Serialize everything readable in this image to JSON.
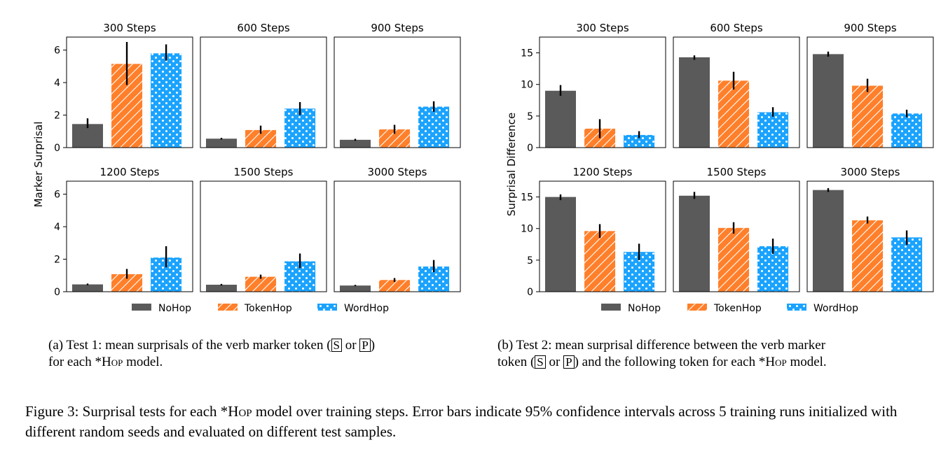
{
  "chart_data": [
    {
      "type": "bar",
      "ylabel": "Marker Surprisal",
      "ylim": [
        0,
        6.8
      ],
      "yticks": [
        0,
        2,
        4,
        6
      ],
      "categories": [
        "NoHop",
        "TokenHop",
        "WordHop"
      ],
      "legend": {
        "position": "bottom",
        "entries": [
          "NoHop",
          "TokenHop",
          "WordHop"
        ]
      },
      "panels": [
        {
          "title": "300 Steps",
          "values": [
            1.45,
            5.15,
            5.8
          ],
          "errors": [
            [
              1.2,
              1.8
            ],
            [
              3.85,
              6.5
            ],
            [
              5.35,
              6.35
            ]
          ]
        },
        {
          "title": "600 Steps",
          "values": [
            0.55,
            1.08,
            2.4
          ],
          "errors": [
            [
              0.5,
              0.6
            ],
            [
              0.85,
              1.35
            ],
            [
              2.0,
              2.8
            ]
          ]
        },
        {
          "title": "900 Steps",
          "values": [
            0.48,
            1.12,
            2.52
          ],
          "errors": [
            [
              0.42,
              0.54
            ],
            [
              0.85,
              1.4
            ],
            [
              2.2,
              2.85
            ]
          ]
        },
        {
          "title": "1200 Steps",
          "values": [
            0.45,
            1.08,
            2.1
          ],
          "errors": [
            [
              0.4,
              0.5
            ],
            [
              0.8,
              1.4
            ],
            [
              1.5,
              2.8
            ]
          ]
        },
        {
          "title": "1500 Steps",
          "values": [
            0.43,
            0.92,
            1.87
          ],
          "errors": [
            [
              0.38,
              0.48
            ],
            [
              0.8,
              1.05
            ],
            [
              1.45,
              2.35
            ]
          ]
        },
        {
          "title": "3000 Steps",
          "values": [
            0.38,
            0.72,
            1.55
          ],
          "errors": [
            [
              0.34,
              0.42
            ],
            [
              0.6,
              0.84
            ],
            [
              1.2,
              1.95
            ]
          ]
        }
      ]
    },
    {
      "type": "bar",
      "ylabel": "Surprisal Difference",
      "ylim": [
        0,
        17.5
      ],
      "yticks": [
        0,
        5,
        10,
        15
      ],
      "categories": [
        "NoHop",
        "TokenHop",
        "WordHop"
      ],
      "legend": {
        "position": "bottom",
        "entries": [
          "NoHop",
          "TokenHop",
          "WordHop"
        ]
      },
      "panels": [
        {
          "title": "300 Steps",
          "values": [
            9.0,
            3.0,
            2.0
          ],
          "errors": [
            [
              8.2,
              9.9
            ],
            [
              1.5,
              4.5
            ],
            [
              1.5,
              2.6
            ]
          ]
        },
        {
          "title": "600 Steps",
          "values": [
            14.3,
            10.6,
            5.6
          ],
          "errors": [
            [
              13.9,
              14.6
            ],
            [
              9.2,
              12.0
            ],
            [
              4.9,
              6.4
            ]
          ]
        },
        {
          "title": "900 Steps",
          "values": [
            14.8,
            9.8,
            5.4
          ],
          "errors": [
            [
              14.4,
              15.2
            ],
            [
              8.8,
              10.9
            ],
            [
              4.8,
              6.0
            ]
          ]
        },
        {
          "title": "1200 Steps",
          "values": [
            15.0,
            9.6,
            6.3
          ],
          "errors": [
            [
              14.5,
              15.4
            ],
            [
              8.5,
              10.7
            ],
            [
              5.0,
              7.6
            ]
          ]
        },
        {
          "title": "1500 Steps",
          "values": [
            15.2,
            10.1,
            7.2
          ],
          "errors": [
            [
              14.7,
              15.8
            ],
            [
              9.2,
              11.0
            ],
            [
              6.0,
              8.4
            ]
          ]
        },
        {
          "title": "3000 Steps",
          "values": [
            16.1,
            11.3,
            8.6
          ],
          "errors": [
            [
              15.8,
              16.4
            ],
            [
              10.8,
              11.9
            ],
            [
              7.4,
              9.7
            ]
          ]
        }
      ]
    }
  ],
  "series_colors": {
    "NoHop": "#5a5a5a",
    "TokenHop": "#ff7f2a",
    "WordHop": "#1aa3ff"
  },
  "captions": {
    "a_prefix": "(a) Test 1: mean surprisals of the verb marker token (",
    "a_box1": "S",
    "a_or": " or ",
    "a_box2": "P",
    "a_suffix": ")",
    "a_line2_prefix": "for each *",
    "a_hop": "Hop",
    "a_line2_suffix": " model.",
    "b_line1": "(b) Test 2: mean surprisal difference between the verb marker",
    "b_line2_prefix": "token (",
    "b_box1": "S",
    "b_or": " or ",
    "b_box2": "P",
    "b_line2_middle": ") and the following token for each *",
    "b_hop": "Hop",
    "b_line2_suffix": " model.",
    "fig_prefix": "Figure 3: Surprisal tests for each *",
    "fig_hop": "Hop",
    "fig_suffix": " model over training steps. Error bars indicate 95% confidence intervals across 5 training runs initialized with different random seeds and evaluated on different test samples."
  }
}
